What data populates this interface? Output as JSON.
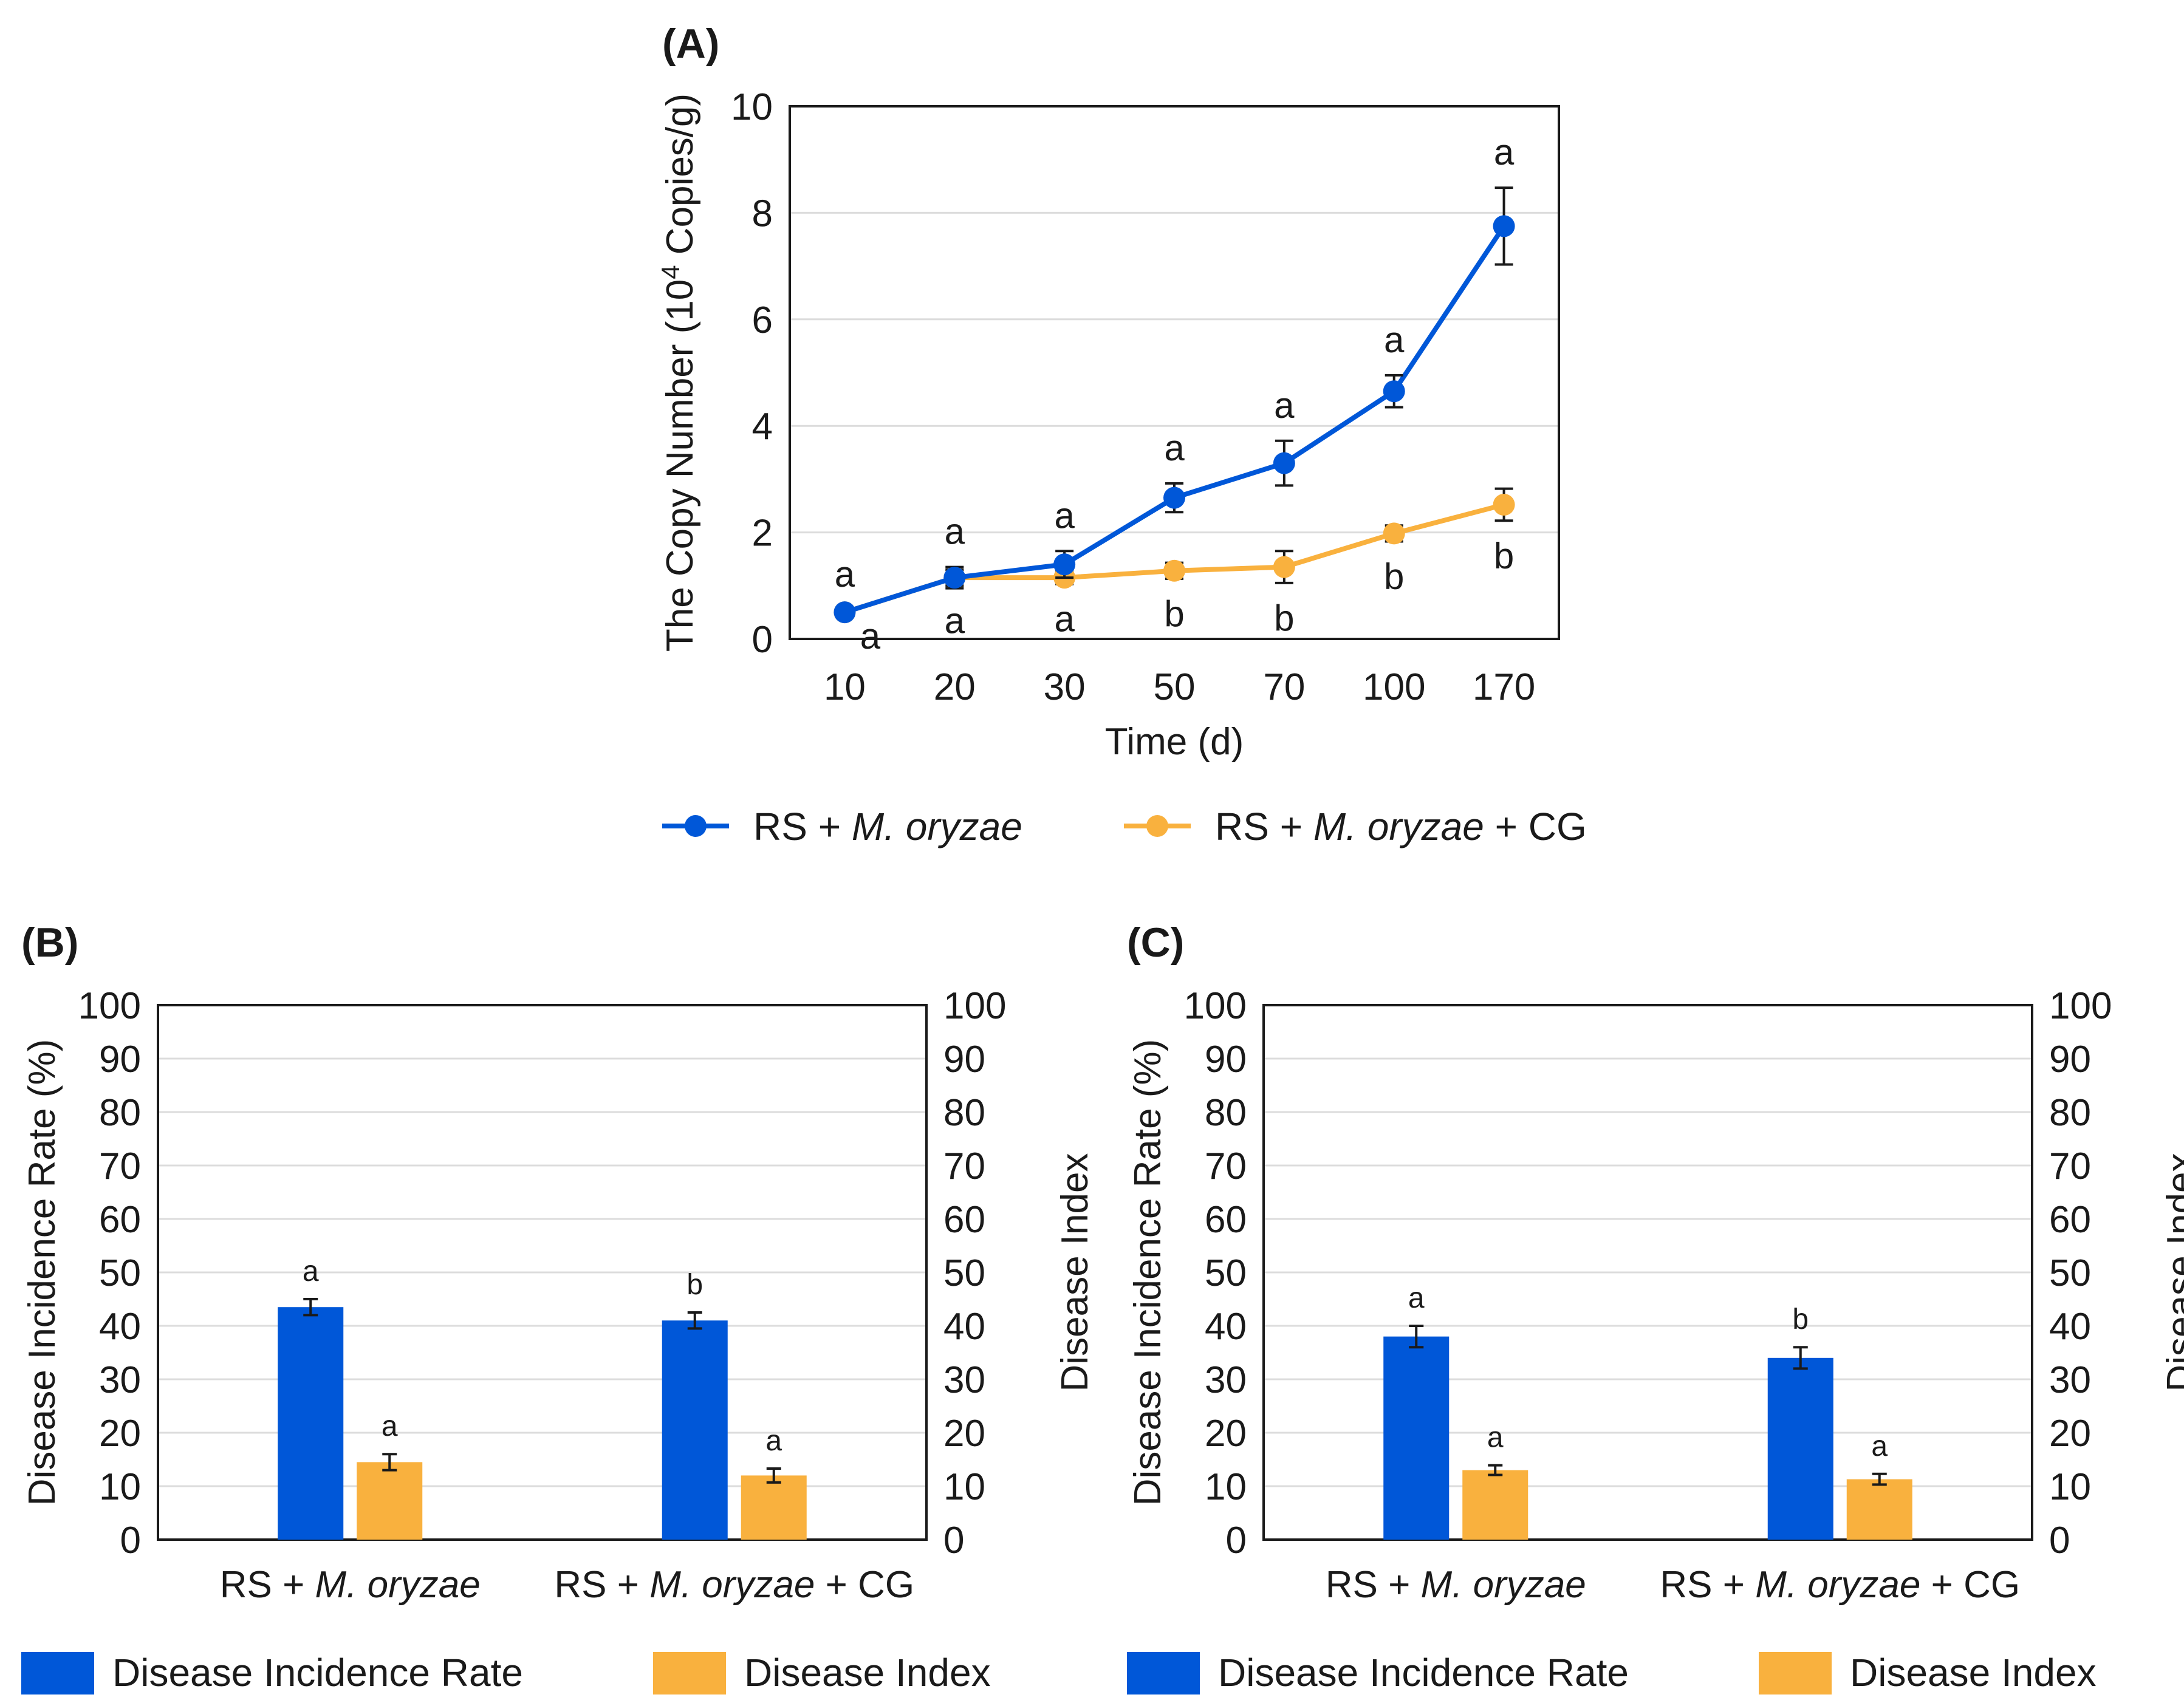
{
  "colors": {
    "blue": "#0057d8",
    "orange": "#f9b13e",
    "grid": "#dcdcdc",
    "axis": "#1a1a1a"
  },
  "chart_data": [
    {
      "panel": "(A)",
      "panel_letter": "A",
      "type": "line",
      "xlabel": "Time (d)",
      "ylabel_prefix": "The Copy Number (10",
      "ylabel_exp": "4",
      "ylabel_suffix": " Copies/g)",
      "ylim": [
        0,
        10
      ],
      "yticks": [
        0,
        2,
        4,
        6,
        8,
        10
      ],
      "categories": [
        "10",
        "20",
        "30",
        "50",
        "70",
        "100",
        "170"
      ],
      "series": [
        {
          "name": "RS + M. oryzae",
          "legend_plain": "RS + ",
          "legend_italic": "M. oryzae",
          "legend_tail": "",
          "color_key": "blue",
          "values": [
            0.5,
            1.15,
            1.4,
            2.65,
            3.3,
            4.65,
            7.75
          ],
          "errors": [
            0.05,
            0.2,
            0.25,
            0.27,
            0.42,
            0.3,
            0.72
          ],
          "letters": [
            "a",
            "a",
            "a",
            "a",
            "a",
            "a",
            "a"
          ]
        },
        {
          "name": "RS + M. oryzae + CG",
          "legend_plain": "RS + ",
          "legend_italic": "M. oryzae",
          "legend_tail": " + CG",
          "color_key": "orange",
          "values": [
            0.5,
            1.15,
            1.15,
            1.28,
            1.35,
            1.98,
            2.52
          ],
          "errors": [
            0.04,
            0.15,
            0.12,
            0.15,
            0.3,
            0.15,
            0.3
          ],
          "letters": [
            "a",
            "a",
            "a",
            "b",
            "b",
            "b",
            "b"
          ]
        }
      ]
    },
    {
      "panel": "(B)",
      "panel_letter": "B",
      "type": "bar",
      "ylabel": "Disease Incidence Rate (%)",
      "ylabel_right": "Disease Index",
      "ylim": [
        0,
        100
      ],
      "yticks": [
        0,
        10,
        20,
        30,
        40,
        50,
        60,
        70,
        80,
        90,
        100
      ],
      "categories": [
        {
          "plain": "RS + ",
          "italic": "M. oryzae",
          "tail": ""
        },
        {
          "plain": "RS + ",
          "italic": "M. oryzae",
          "tail": " + CG"
        }
      ],
      "series": [
        {
          "name": "Disease Incidence Rate",
          "color_key": "blue",
          "values": [
            43.5,
            41
          ],
          "errors": [
            1.5,
            1.5
          ],
          "letters": [
            "a",
            "b"
          ]
        },
        {
          "name": "Disease Index",
          "color_key": "orange",
          "values": [
            14.5,
            12
          ],
          "errors": [
            1.5,
            1.3
          ],
          "letters": [
            "a",
            "a"
          ]
        }
      ]
    },
    {
      "panel": "(C)",
      "panel_letter": "C",
      "type": "bar",
      "ylabel": "Disease Incidence Rate (%)",
      "ylabel_right": "Disease Index",
      "ylim": [
        0,
        100
      ],
      "yticks": [
        0,
        10,
        20,
        30,
        40,
        50,
        60,
        70,
        80,
        90,
        100
      ],
      "categories": [
        {
          "plain": "RS + ",
          "italic": "M. oryzae",
          "tail": ""
        },
        {
          "plain": "RS + ",
          "italic": "M. oryzae",
          "tail": " + CG"
        }
      ],
      "series": [
        {
          "name": "Disease Incidence Rate",
          "color_key": "blue",
          "values": [
            38,
            34
          ],
          "errors": [
            2,
            2
          ],
          "letters": [
            "a",
            "b"
          ]
        },
        {
          "name": "Disease Index",
          "color_key": "orange",
          "values": [
            13,
            11.3
          ],
          "errors": [
            0.9,
            1
          ],
          "letters": [
            "a",
            "a"
          ]
        }
      ]
    }
  ]
}
